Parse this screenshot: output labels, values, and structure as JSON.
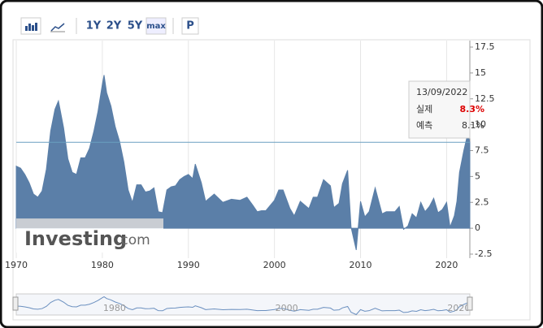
{
  "toolbar": {
    "ranges": [
      "1Y",
      "2Y",
      "5Y",
      "max"
    ],
    "button": "P"
  },
  "chart_data": {
    "type": "area",
    "color": "#5b7fa8",
    "x": [
      1970,
      1970.5,
      1971,
      1971.5,
      1972,
      1972.5,
      1973,
      1973.5,
      1974,
      1974.5,
      1974.9,
      1975.5,
      1976,
      1976.5,
      1977,
      1977.5,
      1978,
      1978.5,
      1979,
      1979.5,
      1980,
      1980.2,
      1980.5,
      1981,
      1981.5,
      1982,
      1982.5,
      1983,
      1983.5,
      1984,
      1984.5,
      1985,
      1985.5,
      1986,
      1986.5,
      1987,
      1987.5,
      1988,
      1988.5,
      1989,
      1989.5,
      1990,
      1990.5,
      1990.8,
      1991.5,
      1992,
      1993,
      1994,
      1995,
      1996,
      1996.8,
      1997.5,
      1998,
      1998.5,
      1999,
      2000,
      2000.5,
      2001,
      2001.8,
      2002.3,
      2003,
      2004,
      2004.5,
      2005,
      2005.7,
      2006.5,
      2006.9,
      2007.5,
      2007.9,
      2008.5,
      2008.9,
      2009.5,
      2010,
      2010.5,
      2011,
      2011.7,
      2012.5,
      2013,
      2014,
      2014.5,
      2015,
      2015.5,
      2016,
      2016.5,
      2017,
      2017.5,
      2018,
      2018.5,
      2019,
      2019.5,
      2020,
      2020.4,
      2020.9,
      2021.2,
      2021.5,
      2022,
      2022.45,
      2022.7
    ],
    "values": [
      6.0,
      5.8,
      5.2,
      4.4,
      3.3,
      3.0,
      3.6,
      5.7,
      9.4,
      11.5,
      12.3,
      9.7,
      6.7,
      5.4,
      5.2,
      6.8,
      6.8,
      7.7,
      9.3,
      11.3,
      13.9,
      14.8,
      13.1,
      11.8,
      9.8,
      8.4,
      6.4,
      3.7,
      2.5,
      4.2,
      4.2,
      3.5,
      3.6,
      3.9,
      1.6,
      1.5,
      3.7,
      4.0,
      4.1,
      4.7,
      5.0,
      5.2,
      4.8,
      6.2,
      4.4,
      2.6,
      3.3,
      2.5,
      2.8,
      2.7,
      3.0,
      2.2,
      1.6,
      1.7,
      1.7,
      2.7,
      3.7,
      3.7,
      1.9,
      1.2,
      2.6,
      1.9,
      3.0,
      3.0,
      4.7,
      4.1,
      2.0,
      2.4,
      4.3,
      5.6,
      0.1,
      -2.1,
      2.6,
      1.1,
      1.6,
      3.9,
      1.4,
      1.6,
      1.6,
      2.1,
      -0.1,
      0.2,
      1.4,
      1.0,
      2.5,
      1.6,
      2.1,
      2.9,
      1.5,
      1.8,
      2.5,
      0.1,
      1.2,
      2.6,
      5.4,
      7.5,
      9.1,
      8.3
    ],
    "xlim": [
      1970,
      2022.7
    ],
    "xticks": [
      1970,
      1980,
      1990,
      2000,
      2010,
      2020
    ],
    "ylim": [
      -2.5,
      17.5
    ],
    "yticks": [
      -2.5,
      0,
      2.5,
      5,
      7.5,
      10,
      12.5,
      15,
      17.5
    ],
    "grid": true,
    "logo_main": "Investing",
    "logo_suffix": ".com",
    "tooltip": {
      "date": "13/09/2022",
      "labels": [
        "실제",
        "예측"
      ],
      "values": [
        8.3,
        8.1
      ],
      "value_labels": [
        "8.3%",
        "8.1%"
      ]
    },
    "navigator_xticks": [
      1980,
      2000,
      2020
    ]
  }
}
